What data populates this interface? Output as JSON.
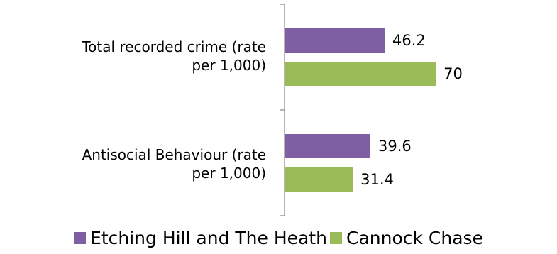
{
  "chart_data": {
    "type": "bar",
    "orientation": "horizontal",
    "categories": [
      "Total recorded crime (rate per 1,000)",
      "Antisocial Behaviour (rate per 1,000)"
    ],
    "series": [
      {
        "name": "Etching Hill and The Heath",
        "color": "#7f5fa3",
        "values": [
          46.2,
          39.6
        ]
      },
      {
        "name": "Cannock Chase",
        "color": "#9bbb59",
        "values": [
          70,
          31.4
        ]
      }
    ],
    "legend_position": "bottom",
    "grid": false
  },
  "labels": {
    "cat0_line1": "Total recorded crime (rate",
    "cat0_line2": "per 1,000)",
    "cat1_line1": "Antisocial Behaviour (rate",
    "cat1_line2": "per 1,000)"
  },
  "legend": {
    "s0": "Etching Hill and The Heath",
    "s1": "Cannock Chase"
  }
}
